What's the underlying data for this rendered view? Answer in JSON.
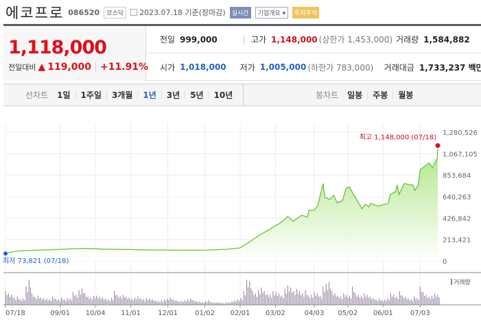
{
  "header": {
    "name": "에코프로",
    "code": "086520",
    "market": "코스닥",
    "date": "2023.07.18 기준(장마감)",
    "realtime": "실시간",
    "company_info": "기업개요",
    "warning": "투자주의"
  },
  "quote": {
    "price": "1,118,000",
    "change_label": "전일대비",
    "change": "119,000",
    "change_pct": "+11.91%",
    "prev_label": "전일",
    "prev": "999,000",
    "high_label": "고가",
    "high": "1,148,000",
    "upper_limit": "(상한가 1,453,000)",
    "volume_label": "거래량",
    "volume": "1,584,882",
    "open_label": "시가",
    "open": "1,018,000",
    "low_label": "저가",
    "low": "1,005,000",
    "lower_limit": "(하한가 783,000)",
    "amount_label": "거래대금",
    "amount": "1,733,237 백만"
  },
  "tabs": {
    "line_label": "선차트",
    "line": [
      "1일",
      "1주일",
      "3개월",
      "1년",
      "3년",
      "5년",
      "10년"
    ],
    "active": "1년",
    "candle_label": "봉차트",
    "candle": [
      "일봉",
      "주봉",
      "월봉"
    ]
  },
  "chart_data": {
    "type": "area",
    "title": "",
    "ylim": [
      0,
      1280526
    ],
    "yticks": [
      "0",
      "213,421",
      "426,842",
      "640,263",
      "853,684",
      "1,067,105",
      "1,280,526"
    ],
    "xticks": [
      {
        "label": "07/18",
        "x": 0
      },
      {
        "label": "09/01",
        "x": 31
      },
      {
        "label": "10/04",
        "x": 51
      },
      {
        "label": "11/01",
        "x": 71
      },
      {
        "label": "12/01",
        "x": 92
      },
      {
        "label": "01/02",
        "x": 113
      },
      {
        "label": "02/01",
        "x": 133
      },
      {
        "label": "03/02",
        "x": 153
      },
      {
        "label": "04/03",
        "x": 175
      },
      {
        "label": "05/02",
        "x": 194
      },
      {
        "label": "06/01",
        "x": 214
      },
      {
        "label": "07/03",
        "x": 235
      }
    ],
    "xmax": 245,
    "price": [
      [
        0,
        73821
      ],
      [
        5,
        95000
      ],
      [
        9,
        102000
      ],
      [
        20,
        108000
      ],
      [
        30,
        115000
      ],
      [
        44,
        125000
      ],
      [
        55,
        118000
      ],
      [
        67,
        115000
      ],
      [
        80,
        110000
      ],
      [
        94,
        108000
      ],
      [
        105,
        106000
      ],
      [
        114,
        108000
      ],
      [
        125,
        116000
      ],
      [
        133,
        130000
      ],
      [
        139,
        197000
      ],
      [
        144,
        259000
      ],
      [
        149,
        306000
      ],
      [
        152,
        340000
      ],
      [
        156,
        380000
      ],
      [
        160,
        443000
      ],
      [
        163,
        395000
      ],
      [
        168,
        456000
      ],
      [
        171,
        436000
      ],
      [
        172,
        504000
      ],
      [
        175,
        504000
      ],
      [
        177,
        552000
      ],
      [
        180,
        770000
      ],
      [
        181,
        633000
      ],
      [
        184,
        613000
      ],
      [
        186,
        654000
      ],
      [
        188,
        579000
      ],
      [
        191,
        600000
      ],
      [
        193,
        722000
      ],
      [
        195,
        735000
      ],
      [
        197,
        668000
      ],
      [
        201,
        552000
      ],
      [
        202,
        518000
      ],
      [
        204,
        565000
      ],
      [
        206,
        538000
      ],
      [
        207,
        572000
      ],
      [
        211,
        545000
      ],
      [
        215,
        565000
      ],
      [
        217,
        572000
      ],
      [
        218,
        661000
      ],
      [
        221,
        688000
      ],
      [
        222,
        756000
      ],
      [
        223,
        661000
      ],
      [
        226,
        770000
      ],
      [
        230,
        756000
      ],
      [
        231,
        756000
      ],
      [
        232,
        702000
      ],
      [
        234,
        756000
      ],
      [
        235,
        906000
      ],
      [
        238,
        947000
      ],
      [
        240,
        974000
      ],
      [
        241,
        954000
      ],
      [
        242,
        926000
      ],
      [
        244,
        1001000
      ],
      [
        244.6,
        1015000
      ],
      [
        245,
        1118000
      ]
    ],
    "max_label": "최고 1,148,000 (07/18)",
    "max": {
      "x": 245,
      "y": 1148000
    },
    "min_label": "최저 73,821 (07/18)",
    "min": {
      "x": 0,
      "y": 73821
    },
    "volume_label": "거래량",
    "volume_rel": [
      30,
      25,
      22,
      15,
      18,
      12,
      14,
      40,
      55,
      25,
      18,
      20,
      16,
      15,
      14,
      12,
      18,
      14,
      12,
      16,
      12,
      15,
      14,
      28,
      22,
      32,
      36,
      25,
      18,
      16,
      20,
      20,
      18,
      16,
      14,
      12,
      15,
      30,
      22,
      20,
      22,
      18,
      16,
      14,
      16,
      18,
      14,
      12,
      15,
      14,
      12,
      10,
      8,
      10,
      12,
      14,
      16,
      12,
      10,
      8,
      9,
      10,
      12,
      14,
      10,
      8,
      7,
      6,
      8,
      10,
      6,
      5,
      6,
      5,
      4,
      5,
      6,
      8,
      10,
      12,
      15,
      30,
      55,
      52,
      30,
      25,
      32,
      38,
      30,
      24,
      22,
      30,
      28,
      25,
      20,
      35,
      42,
      38,
      30,
      35,
      30,
      25,
      32,
      20,
      22,
      28,
      25,
      20,
      40,
      46,
      50,
      30,
      25,
      20,
      18,
      25,
      22,
      20,
      40,
      25,
      22,
      20,
      25,
      22,
      18,
      15,
      12,
      14,
      10,
      12,
      15,
      25,
      22,
      18,
      30,
      20,
      18,
      14,
      12,
      18,
      15,
      40,
      28,
      22,
      18,
      20,
      25,
      22
    ]
  },
  "colors": {
    "line": "#6abf3a",
    "fill_top": "#a8e47c",
    "fill_bottom": "#ffffff",
    "red": "#e0101a",
    "volume": "#8a7a9a"
  }
}
